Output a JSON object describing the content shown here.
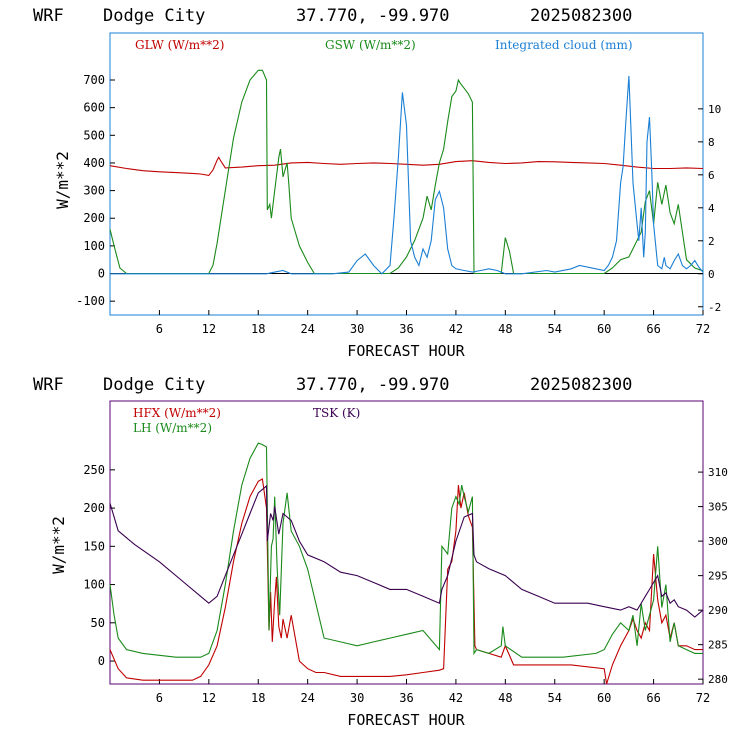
{
  "header": {
    "model": "WRF",
    "station": "Dodge City",
    "coords": "37.770, -99.970",
    "init": "2025082300"
  },
  "colors": {
    "red": "#c00000",
    "green": "#1a8a1a",
    "blue": "#1a7fd4",
    "purple": "#3a0050",
    "top_frame": "#1a7fd4",
    "bottom_frame": "#5a0070"
  },
  "chart_data": [
    {
      "type": "line",
      "xlabel": "FORECAST HOUR",
      "ylabel": "W/m**2",
      "xlim": [
        0,
        72
      ],
      "ylim": [
        -150,
        870
      ],
      "y2lim": [
        -2.5,
        14.6
      ],
      "xticks": [
        6,
        12,
        18,
        24,
        30,
        36,
        42,
        48,
        54,
        60,
        66,
        72
      ],
      "yticks": [
        -100,
        0,
        100,
        200,
        300,
        400,
        500,
        600,
        700
      ],
      "y2ticks": [
        -2,
        0,
        2,
        4,
        6,
        8,
        10
      ],
      "series": [
        {
          "name": "GLW (W/m**2)",
          "axis": "left",
          "color": "#c00000",
          "x": [
            0,
            2,
            4,
            6,
            8,
            10,
            11,
            12,
            12.5,
            13,
            13.2,
            13.5,
            14,
            16,
            18,
            20,
            22,
            24,
            26,
            28,
            30,
            32,
            34,
            36,
            38,
            40,
            42,
            44,
            46,
            48,
            50,
            52,
            54,
            56,
            58,
            60,
            62,
            64,
            66,
            68,
            70,
            72
          ],
          "y": [
            390,
            380,
            372,
            368,
            365,
            362,
            360,
            355,
            375,
            410,
            420,
            405,
            382,
            385,
            390,
            392,
            400,
            402,
            398,
            395,
            398,
            400,
            398,
            395,
            392,
            395,
            405,
            408,
            402,
            398,
            400,
            405,
            404,
            402,
            400,
            398,
            392,
            385,
            380,
            380,
            382,
            380
          ]
        },
        {
          "name": "GSW (W/m**2)",
          "axis": "left",
          "color": "#1a8a1a",
          "x": [
            0,
            0.5,
            1.2,
            2,
            12,
            12.5,
            13,
            14,
            15,
            16,
            17,
            18,
            18.5,
            19,
            19.1,
            19.4,
            19.6,
            20,
            20.5,
            20.7,
            21,
            21.5,
            21.7,
            22,
            22.5,
            23,
            24,
            24.8,
            26,
            34,
            35,
            36,
            37,
            38,
            38.5,
            39,
            39.5,
            40,
            40.5,
            41,
            41.5,
            42,
            42.3,
            42.5,
            43,
            43.5,
            44,
            44.2,
            44.5,
            46,
            47.5,
            48,
            48.5,
            49,
            60,
            61,
            62,
            63,
            64,
            64.5,
            65,
            65.5,
            66,
            66.5,
            67,
            67.5,
            68,
            68.5,
            69,
            69.5,
            70,
            71,
            72
          ],
          "y": [
            160,
            100,
            20,
            0,
            0,
            30,
            110,
            300,
            490,
            620,
            700,
            735,
            735,
            700,
            230,
            250,
            200,
            300,
            420,
            450,
            350,
            400,
            330,
            200,
            150,
            100,
            40,
            0,
            0,
            0,
            20,
            60,
            120,
            200,
            280,
            230,
            320,
            400,
            450,
            550,
            640,
            660,
            700,
            690,
            670,
            650,
            620,
            0,
            0,
            0,
            0,
            130,
            80,
            0,
            0,
            20,
            50,
            60,
            120,
            150,
            260,
            300,
            180,
            330,
            250,
            320,
            220,
            180,
            250,
            150,
            50,
            20,
            10
          ]
        },
        {
          "name": "Integrated cloud (mm)",
          "axis": "right",
          "color": "#1a7fd4",
          "x": [
            0,
            10,
            19,
            20,
            21,
            22,
            27,
            29,
            30,
            31,
            32,
            33,
            34,
            34.5,
            35,
            35.5,
            36,
            36.5,
            37,
            37.5,
            38,
            38.5,
            39,
            39.5,
            40,
            40.5,
            41,
            41.5,
            42,
            43,
            44,
            45,
            46,
            47,
            48,
            50,
            53,
            54,
            56,
            57,
            59,
            60,
            60.5,
            61,
            61.5,
            62,
            62.3,
            62.6,
            63,
            63.2,
            63.5,
            64,
            64.2,
            64.5,
            64.8,
            65,
            65.2,
            65.5,
            65.8,
            66,
            66.5,
            67,
            67.3,
            67.5,
            68,
            68.5,
            69,
            69.5,
            70,
            70.5,
            71,
            71.5,
            72
          ],
          "y": [
            0,
            0,
            0,
            0.1,
            0.2,
            0,
            0,
            0.1,
            0.8,
            1.2,
            0.5,
            0,
            0.5,
            3.5,
            7,
            11,
            9,
            2,
            1,
            0.5,
            1.5,
            1,
            2,
            4.5,
            5,
            4,
            1.5,
            0.5,
            0.3,
            0.2,
            0.1,
            0.2,
            0.3,
            0.2,
            0,
            0,
            0.2,
            0.1,
            0.3,
            0.5,
            0.3,
            0.2,
            0.5,
            1,
            2,
            5.5,
            6.5,
            9,
            12,
            9.5,
            5.5,
            3,
            2,
            4,
            1,
            2.5,
            8,
            9.5,
            6,
            3,
            0.5,
            0.3,
            1,
            0.5,
            0.3,
            0.8,
            1.2,
            0.5,
            0.3,
            0.5,
            0.8,
            0.4,
            0.1
          ]
        }
      ]
    },
    {
      "type": "line",
      "xlabel": "FORECAST HOUR",
      "ylabel": "W/m**2",
      "xlim": [
        0,
        72
      ],
      "ylim": [
        -30,
        340
      ],
      "y2lim": [
        279.3,
        320.3
      ],
      "xticks": [
        6,
        12,
        18,
        24,
        30,
        36,
        42,
        48,
        54,
        60,
        66,
        72
      ],
      "yticks": [
        0,
        50,
        100,
        150,
        200,
        250
      ],
      "y2ticks": [
        280,
        285,
        290,
        295,
        300,
        305,
        310
      ],
      "series": [
        {
          "name": "HFX (W/m**2)",
          "axis": "left",
          "color": "#c00000",
          "x": [
            0,
            1,
            2,
            4,
            8,
            10,
            11,
            12,
            13,
            14,
            15,
            16,
            17,
            18,
            18.5,
            19,
            19.3,
            19.5,
            19.7,
            20,
            20.2,
            20.5,
            20.8,
            21,
            21.5,
            22,
            23,
            24,
            25,
            26,
            28,
            30,
            34,
            36,
            38,
            40,
            40.5,
            41,
            41.5,
            42,
            42.3,
            42.6,
            43,
            43.5,
            44,
            44.3,
            44.5,
            46,
            47.5,
            48,
            49,
            52,
            56,
            60,
            60.3,
            61,
            62,
            63,
            63.5,
            64,
            64.5,
            65,
            65.5,
            66,
            66.5,
            67,
            67.5,
            68,
            68.5,
            69,
            70,
            71,
            72
          ],
          "y": [
            15,
            -10,
            -22,
            -25,
            -25,
            -25,
            -20,
            -5,
            20,
            70,
            130,
            180,
            215,
            235,
            238,
            200,
            40,
            90,
            25,
            80,
            110,
            45,
            30,
            55,
            30,
            60,
            0,
            -10,
            -15,
            -15,
            -20,
            -20,
            -20,
            -18,
            -15,
            -12,
            -10,
            120,
            130,
            170,
            230,
            200,
            220,
            190,
            175,
            20,
            15,
            10,
            5,
            20,
            -5,
            -5,
            -5,
            -10,
            -30,
            -5,
            20,
            40,
            55,
            40,
            30,
            50,
            40,
            140,
            80,
            50,
            60,
            30,
            50,
            20,
            20,
            15,
            15
          ]
        },
        {
          "name": "LH  (W/m**2)",
          "axis": "left",
          "color": "#1a8a1a",
          "x": [
            0,
            0.5,
            1,
            2,
            4,
            8,
            11,
            12,
            13,
            14,
            15,
            16,
            17,
            18,
            18.5,
            19,
            19.3,
            19.6,
            19.8,
            20,
            20.3,
            20.6,
            21,
            21.5,
            22,
            23,
            24,
            26,
            28,
            30,
            32,
            34,
            36,
            38,
            40,
            40.3,
            41,
            41.5,
            42,
            42.4,
            42.7,
            43,
            43.5,
            44,
            44.2,
            44.5,
            46,
            47.5,
            47.7,
            48,
            50,
            55,
            59,
            60,
            61,
            62,
            63,
            63.5,
            64,
            64.5,
            65,
            65.5,
            66,
            66.5,
            67,
            67.5,
            68,
            68.5,
            69,
            70,
            71,
            72
          ],
          "y": [
            100,
            60,
            30,
            15,
            10,
            5,
            5,
            10,
            40,
            100,
            170,
            230,
            265,
            285,
            283,
            280,
            40,
            150,
            160,
            215,
            120,
            60,
            180,
            220,
            170,
            150,
            120,
            30,
            25,
            20,
            25,
            30,
            35,
            40,
            15,
            150,
            140,
            200,
            215,
            205,
            230,
            215,
            195,
            215,
            10,
            15,
            10,
            20,
            45,
            20,
            5,
            5,
            10,
            15,
            35,
            50,
            40,
            60,
            20,
            75,
            40,
            60,
            80,
            150,
            70,
            100,
            25,
            50,
            20,
            15,
            10,
            10
          ]
        },
        {
          "name": "TSK (K)",
          "axis": "right",
          "color": "#3a0050",
          "x": [
            0,
            1,
            3,
            6,
            9,
            11,
            12,
            13,
            14,
            15,
            16,
            17,
            18,
            18.5,
            19,
            19.1,
            19.5,
            19.8,
            20,
            20.5,
            21,
            22,
            23,
            24,
            26,
            28,
            30,
            32,
            34,
            36,
            38,
            40,
            40.3,
            41,
            42,
            43,
            44,
            44.2,
            44.5,
            46,
            48,
            50,
            52,
            54,
            56,
            58,
            60,
            62,
            63,
            64,
            65,
            65.5,
            66,
            66.5,
            67,
            67.5,
            68,
            68.5,
            69,
            70,
            71,
            72
          ],
          "y": [
            305.5,
            301.5,
            299.5,
            297,
            294,
            292,
            291,
            292,
            295,
            298,
            301,
            304,
            307,
            307.5,
            308,
            300,
            304,
            303,
            305,
            301,
            304,
            303,
            300,
            298,
            297,
            295.5,
            295,
            294,
            293,
            293,
            292,
            291,
            293,
            295,
            300,
            303.5,
            304,
            298,
            297,
            296,
            295,
            293,
            292,
            291,
            291,
            291,
            290.5,
            290,
            290.5,
            290,
            292,
            293,
            294,
            295,
            292,
            292.5,
            291,
            291.5,
            290.5,
            290,
            289,
            290
          ]
        }
      ]
    }
  ]
}
